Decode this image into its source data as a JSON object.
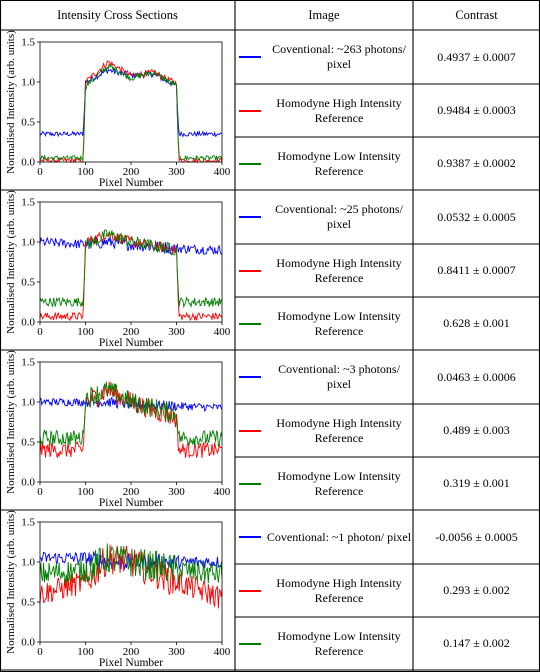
{
  "headers": {
    "col1": "Intensity Cross Sections",
    "col2": "Image",
    "col3": "Contrast"
  },
  "colors": {
    "conventional": "#0000ff",
    "high": "#ff0000",
    "low": "#008000"
  },
  "rows": [
    {
      "legend": [
        {
          "text": "Coventional: ~263 photons/ pixel",
          "color": "#0000ff",
          "contrast": "0.4937 ± 0.0007"
        },
        {
          "text": "Homodyne High Intensity Reference",
          "color": "#ff0000",
          "contrast": "0.9484 ± 0.0003"
        },
        {
          "text": "Homodyne Low Intensity Reference",
          "color": "#008000",
          "contrast": "0.9387 ± 0.0002"
        }
      ]
    },
    {
      "legend": [
        {
          "text": "Coventional: ~25 photons/ pixel",
          "color": "#0000ff",
          "contrast": "0.0532 ± 0.0005"
        },
        {
          "text": "Homodyne High Intensity Reference",
          "color": "#ff0000",
          "contrast": "0.8411 ± 0.0007"
        },
        {
          "text": "Homodyne Low Intensity Reference",
          "color": "#008000",
          "contrast": "0.628 ± 0.001"
        }
      ]
    },
    {
      "legend": [
        {
          "text": "Coventional: ~3 photons/ pixel",
          "color": "#0000ff",
          "contrast": "0.0463 ± 0.0006"
        },
        {
          "text": "Homodyne High Intensity Reference",
          "color": "#ff0000",
          "contrast": "0.489 ± 0.003"
        },
        {
          "text": "Homodyne Low Intensity Reference",
          "color": "#008000",
          "contrast": "0.319 ± 0.001"
        }
      ]
    },
    {
      "legend": [
        {
          "text": "Coventional: ~1 photon/ pixel",
          "color": "#0000ff",
          "contrast": "-0.0056 ± 0.0005"
        },
        {
          "text": "Homodyne High Intensity Reference",
          "color": "#ff0000",
          "contrast": "0.293 ± 0.002"
        },
        {
          "text": "Homodyne Low Intensity Reference",
          "color": "#008000",
          "contrast": "0.147 ± 0.002"
        }
      ]
    }
  ],
  "chart_data": [
    {
      "type": "line",
      "xlabel": "Pixel Number",
      "ylabel": "Normalised Intensity (arb. units)",
      "xlim": [
        0,
        400
      ],
      "ylim": [
        0,
        1.5
      ],
      "xticks": [
        "0",
        "100",
        "200",
        "300",
        "400"
      ],
      "yticks": [
        "0.0",
        "0.5",
        "1.0",
        "1.5"
      ],
      "series": [
        {
          "color": "#0000ff",
          "x": [
            0,
            95,
            100,
            150,
            200,
            250,
            300,
            305,
            400
          ],
          "y": [
            0.35,
            0.35,
            1.0,
            1.15,
            1.08,
            1.1,
            0.95,
            0.35,
            0.35
          ]
        },
        {
          "color": "#ff0000",
          "x": [
            0,
            95,
            100,
            150,
            200,
            250,
            300,
            305,
            400
          ],
          "y": [
            0.02,
            0.02,
            1.0,
            1.25,
            1.08,
            1.12,
            0.98,
            0.02,
            0.02
          ]
        },
        {
          "color": "#008000",
          "x": [
            0,
            95,
            100,
            150,
            200,
            250,
            300,
            305,
            400
          ],
          "y": [
            0.05,
            0.05,
            0.95,
            1.2,
            1.05,
            1.12,
            0.95,
            0.05,
            0.05
          ]
        }
      ]
    },
    {
      "type": "line",
      "xlabel": "Pixel Number",
      "ylabel": "Normalised Intensity (arb. units)",
      "xlim": [
        0,
        400
      ],
      "ylim": [
        0,
        1.5
      ],
      "xticks": [
        "0",
        "100",
        "200",
        "300",
        "400"
      ],
      "yticks": [
        "0.0",
        "0.5",
        "1.0",
        "1.5"
      ],
      "series": [
        {
          "color": "#0000ff",
          "x": [
            0,
            100,
            150,
            200,
            300,
            400
          ],
          "y": [
            1.0,
            0.97,
            1.0,
            0.97,
            0.92,
            0.9
          ]
        },
        {
          "color": "#ff0000",
          "x": [
            0,
            95,
            100,
            150,
            200,
            300,
            305,
            400
          ],
          "y": [
            0.07,
            0.07,
            1.0,
            1.1,
            1.0,
            0.9,
            0.07,
            0.07
          ]
        },
        {
          "color": "#008000",
          "x": [
            0,
            95,
            100,
            150,
            200,
            300,
            305,
            400
          ],
          "y": [
            0.25,
            0.25,
            0.95,
            1.1,
            1.0,
            0.9,
            0.25,
            0.25
          ]
        }
      ]
    },
    {
      "type": "line",
      "xlabel": "Pixel Number",
      "ylabel": "Normalised Intensity (arb. units)",
      "xlim": [
        0,
        400
      ],
      "ylim": [
        0,
        1.5
      ],
      "xticks": [
        "0",
        "100",
        "200",
        "300",
        "400"
      ],
      "yticks": [
        "0.0",
        "0.5",
        "1.0",
        "1.5"
      ],
      "series": [
        {
          "color": "#0000ff",
          "x": [
            0,
            100,
            150,
            200,
            300,
            400
          ],
          "y": [
            1.0,
            1.0,
            1.0,
            0.97,
            0.95,
            0.93
          ]
        },
        {
          "color": "#ff0000",
          "x": [
            0,
            95,
            100,
            150,
            200,
            300,
            305,
            400
          ],
          "y": [
            0.4,
            0.4,
            1.0,
            1.15,
            1.0,
            0.8,
            0.4,
            0.4
          ]
        },
        {
          "color": "#008000",
          "x": [
            0,
            95,
            100,
            150,
            200,
            300,
            305,
            400
          ],
          "y": [
            0.55,
            0.55,
            1.05,
            1.15,
            1.0,
            0.85,
            0.55,
            0.55
          ]
        }
      ]
    },
    {
      "type": "line",
      "xlabel": "Pixel Number",
      "ylabel": "Normalised Intensity (arb. units)",
      "xlim": [
        0,
        400
      ],
      "ylim": [
        0,
        1.5
      ],
      "xticks": [
        "0",
        "100",
        "200",
        "300",
        "400"
      ],
      "yticks": [
        "0.0",
        "0.5",
        "1.0",
        "1.5"
      ],
      "series": [
        {
          "color": "#0000ff",
          "x": [
            0,
            100,
            150,
            200,
            300,
            400
          ],
          "y": [
            1.05,
            1.05,
            1.0,
            1.0,
            1.0,
            1.0
          ]
        },
        {
          "color": "#ff0000",
          "x": [
            0,
            100,
            150,
            200,
            300,
            400
          ],
          "y": [
            0.6,
            0.75,
            1.05,
            1.0,
            0.75,
            0.55
          ]
        },
        {
          "color": "#008000",
          "x": [
            0,
            100,
            150,
            200,
            300,
            400
          ],
          "y": [
            0.85,
            0.9,
            1.05,
            1.0,
            0.9,
            0.85
          ]
        }
      ]
    }
  ]
}
